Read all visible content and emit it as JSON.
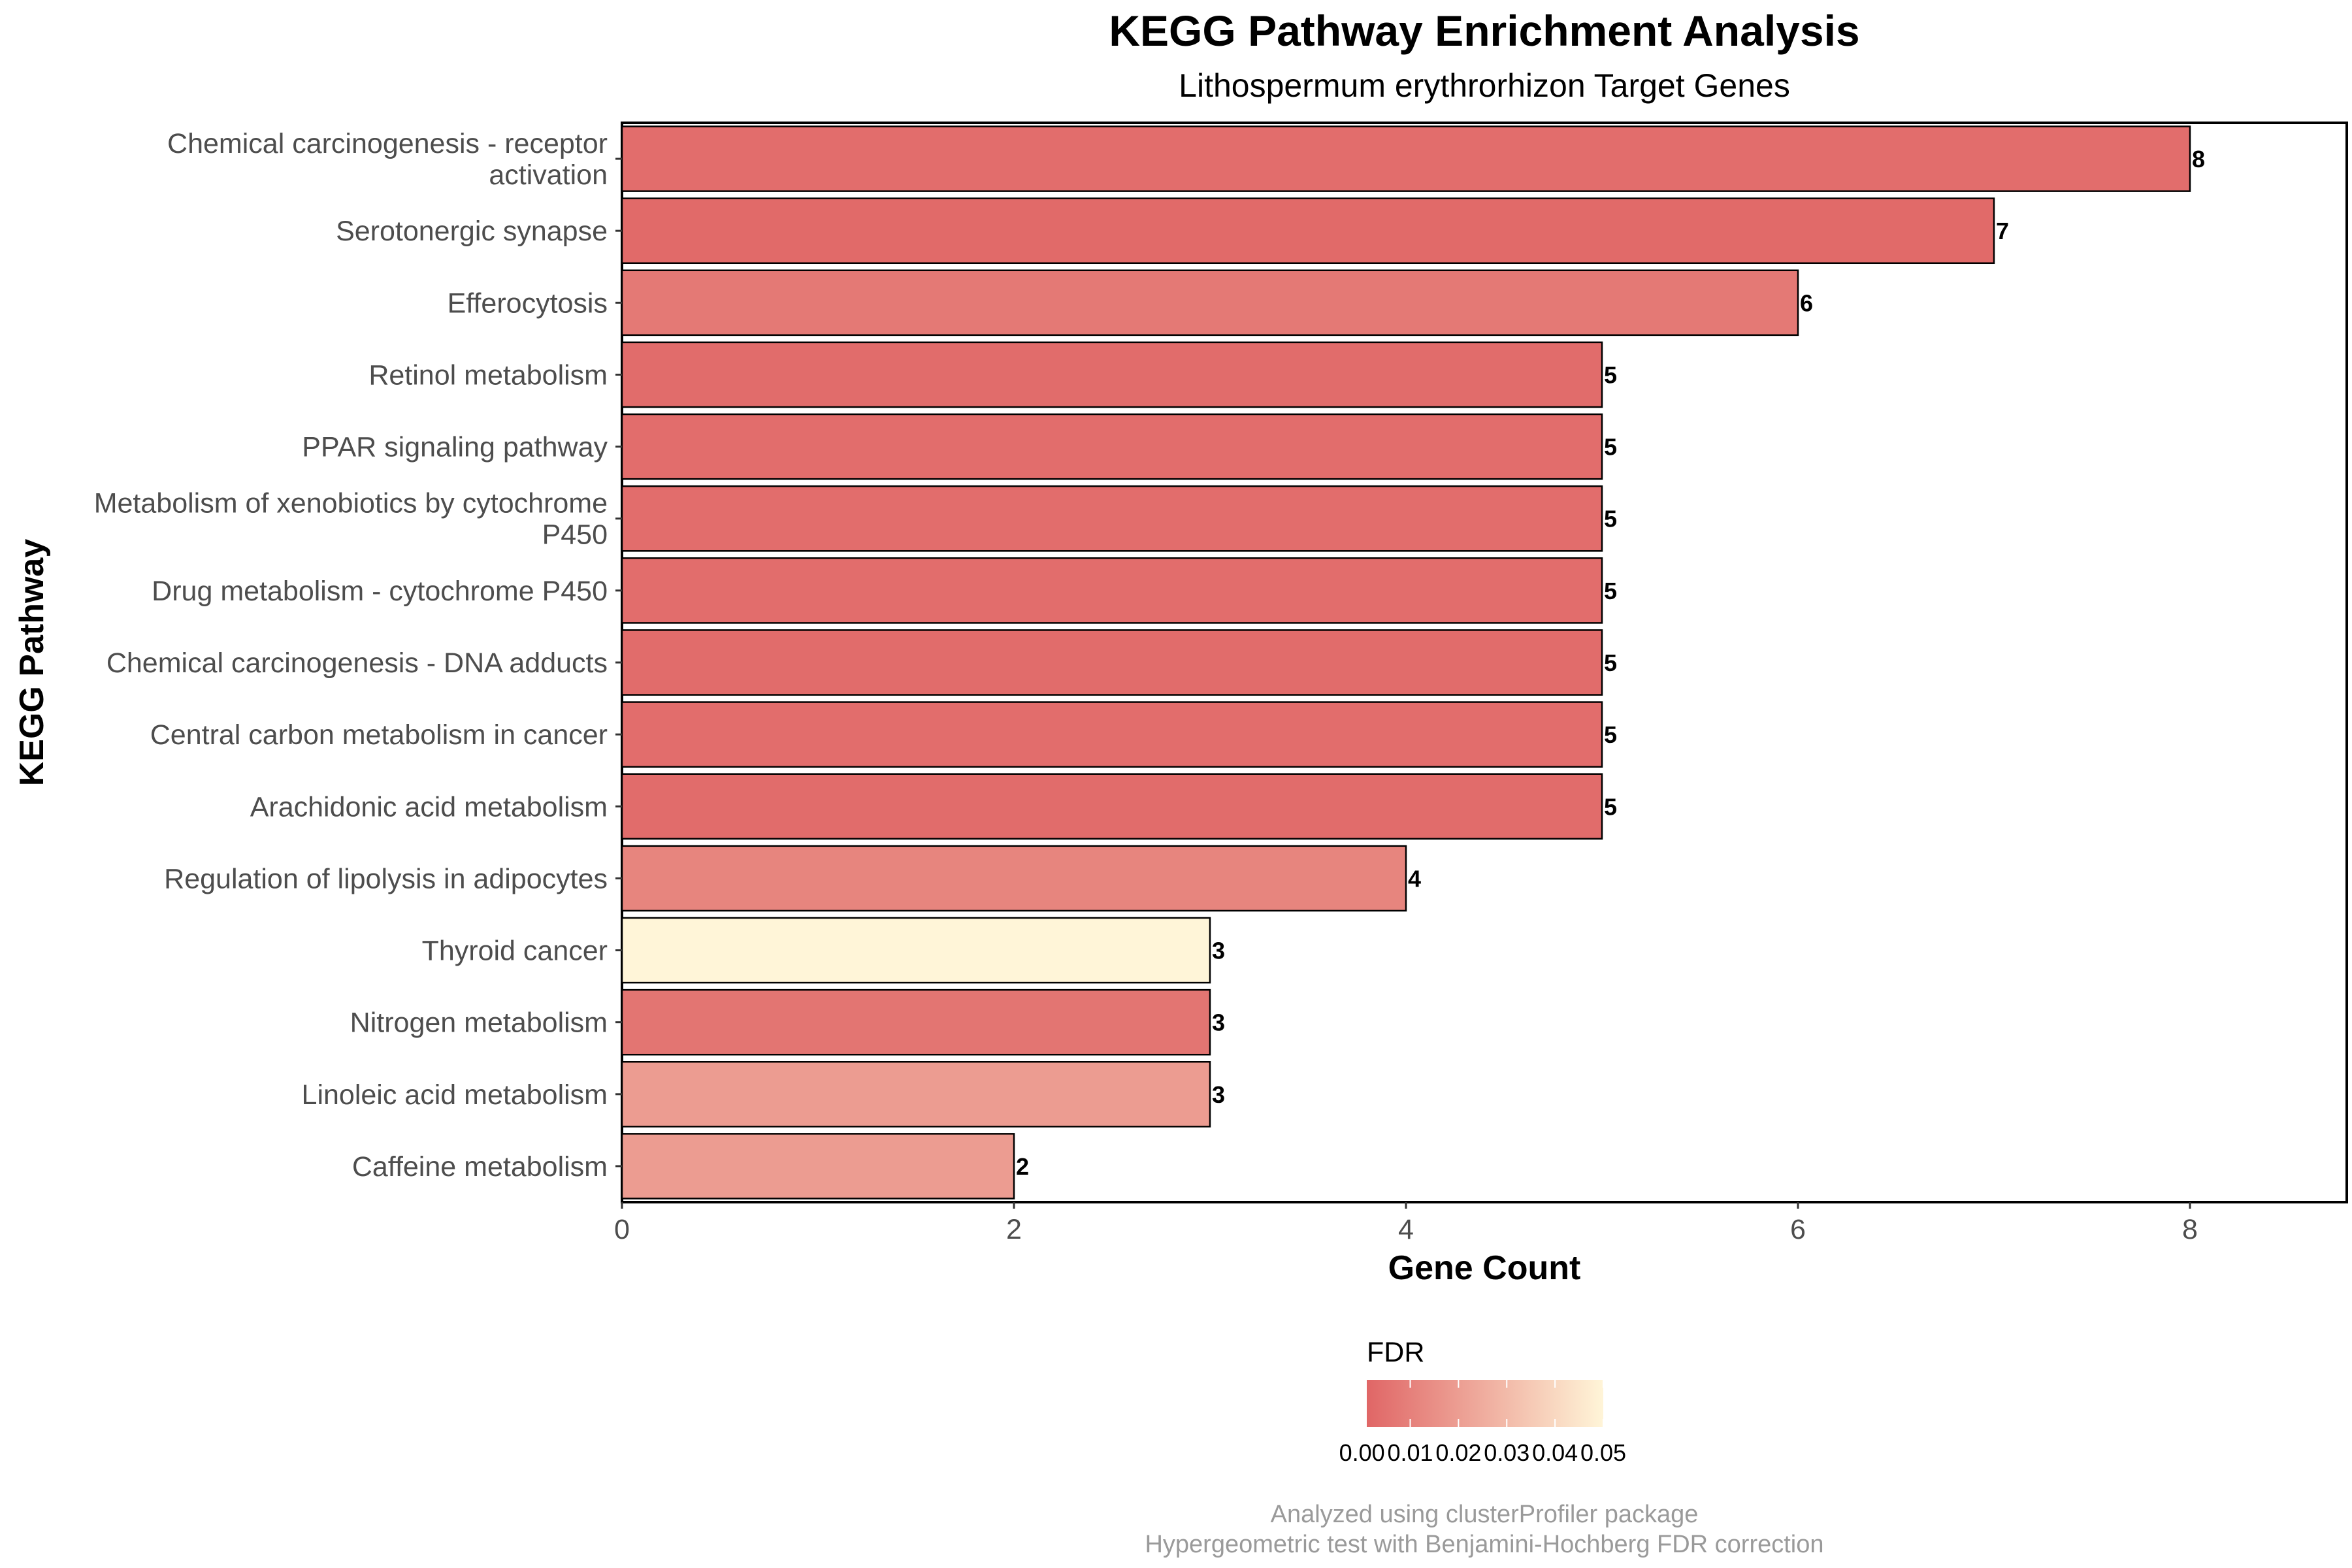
{
  "chart_data": {
    "type": "bar",
    "orientation": "horizontal",
    "title": "KEGG Pathway Enrichment Analysis",
    "subtitle": "Lithospermum erythrorhizon Target Genes",
    "xlabel": "Gene Count",
    "ylabel": "KEGG Pathway",
    "xlim": [
      0,
      8.8
    ],
    "xticks": [
      0,
      2,
      4,
      6,
      8
    ],
    "grid": false,
    "categories": [
      "Chemical carcinogenesis - receptor activation",
      "Serotonergic synapse",
      "Efferocytosis",
      "Retinol metabolism",
      "PPAR signaling pathway",
      "Metabolism of xenobiotics by cytochrome P450",
      "Drug metabolism - cytochrome P450",
      "Chemical carcinogenesis - DNA adducts",
      "Central carbon metabolism in cancer",
      "Arachidonic acid metabolism",
      "Regulation of lipolysis in adipocytes",
      "Thyroid cancer",
      "Nitrogen metabolism",
      "Linoleic acid metabolism",
      "Caffeine metabolism"
    ],
    "category_lines": [
      [
        "Chemical carcinogenesis - receptor",
        "activation"
      ],
      [
        "Serotonergic synapse"
      ],
      [
        "Efferocytosis"
      ],
      [
        "Retinol metabolism"
      ],
      [
        "PPAR signaling pathway"
      ],
      [
        "Metabolism of xenobiotics by cytochrome",
        "P450"
      ],
      [
        "Drug metabolism - cytochrome P450"
      ],
      [
        "Chemical carcinogenesis - DNA adducts"
      ],
      [
        "Central carbon metabolism in cancer"
      ],
      [
        "Arachidonic acid metabolism"
      ],
      [
        "Regulation of lipolysis in adipocytes"
      ],
      [
        "Thyroid cancer"
      ],
      [
        "Nitrogen metabolism"
      ],
      [
        "Linoleic acid metabolism"
      ],
      [
        "Caffeine metabolism"
      ]
    ],
    "values": [
      8,
      7,
      6,
      5,
      5,
      5,
      5,
      5,
      5,
      5,
      4,
      3,
      3,
      3,
      2
    ],
    "value_labels": [
      "8",
      "7",
      "6",
      "5",
      "5",
      "5",
      "5",
      "5",
      "5",
      "5",
      "4",
      "3",
      "3",
      "3",
      "2"
    ],
    "fdr": [
      0.0035,
      0.0025,
      0.0075,
      0.003,
      0.0035,
      0.0035,
      0.0035,
      0.003,
      0.0035,
      0.003,
      0.0115,
      0.05,
      0.006,
      0.0195,
      0.0195
    ],
    "legend": {
      "title": "FDR",
      "placement": "bottom",
      "range": [
        0.001,
        0.05
      ],
      "low_color": "#e06666",
      "high_color": "#fff5d8",
      "tick_labels": [
        "0.00",
        "0.01",
        "0.02",
        "0.03",
        "0.04",
        "0.05"
      ],
      "tick_values": [
        0.0,
        0.01,
        0.02,
        0.03,
        0.04,
        0.05
      ]
    },
    "caption": [
      "Analyzed using clusterProfiler package",
      "Hypergeometric test with Benjamini-Hochberg FDR correction"
    ]
  }
}
